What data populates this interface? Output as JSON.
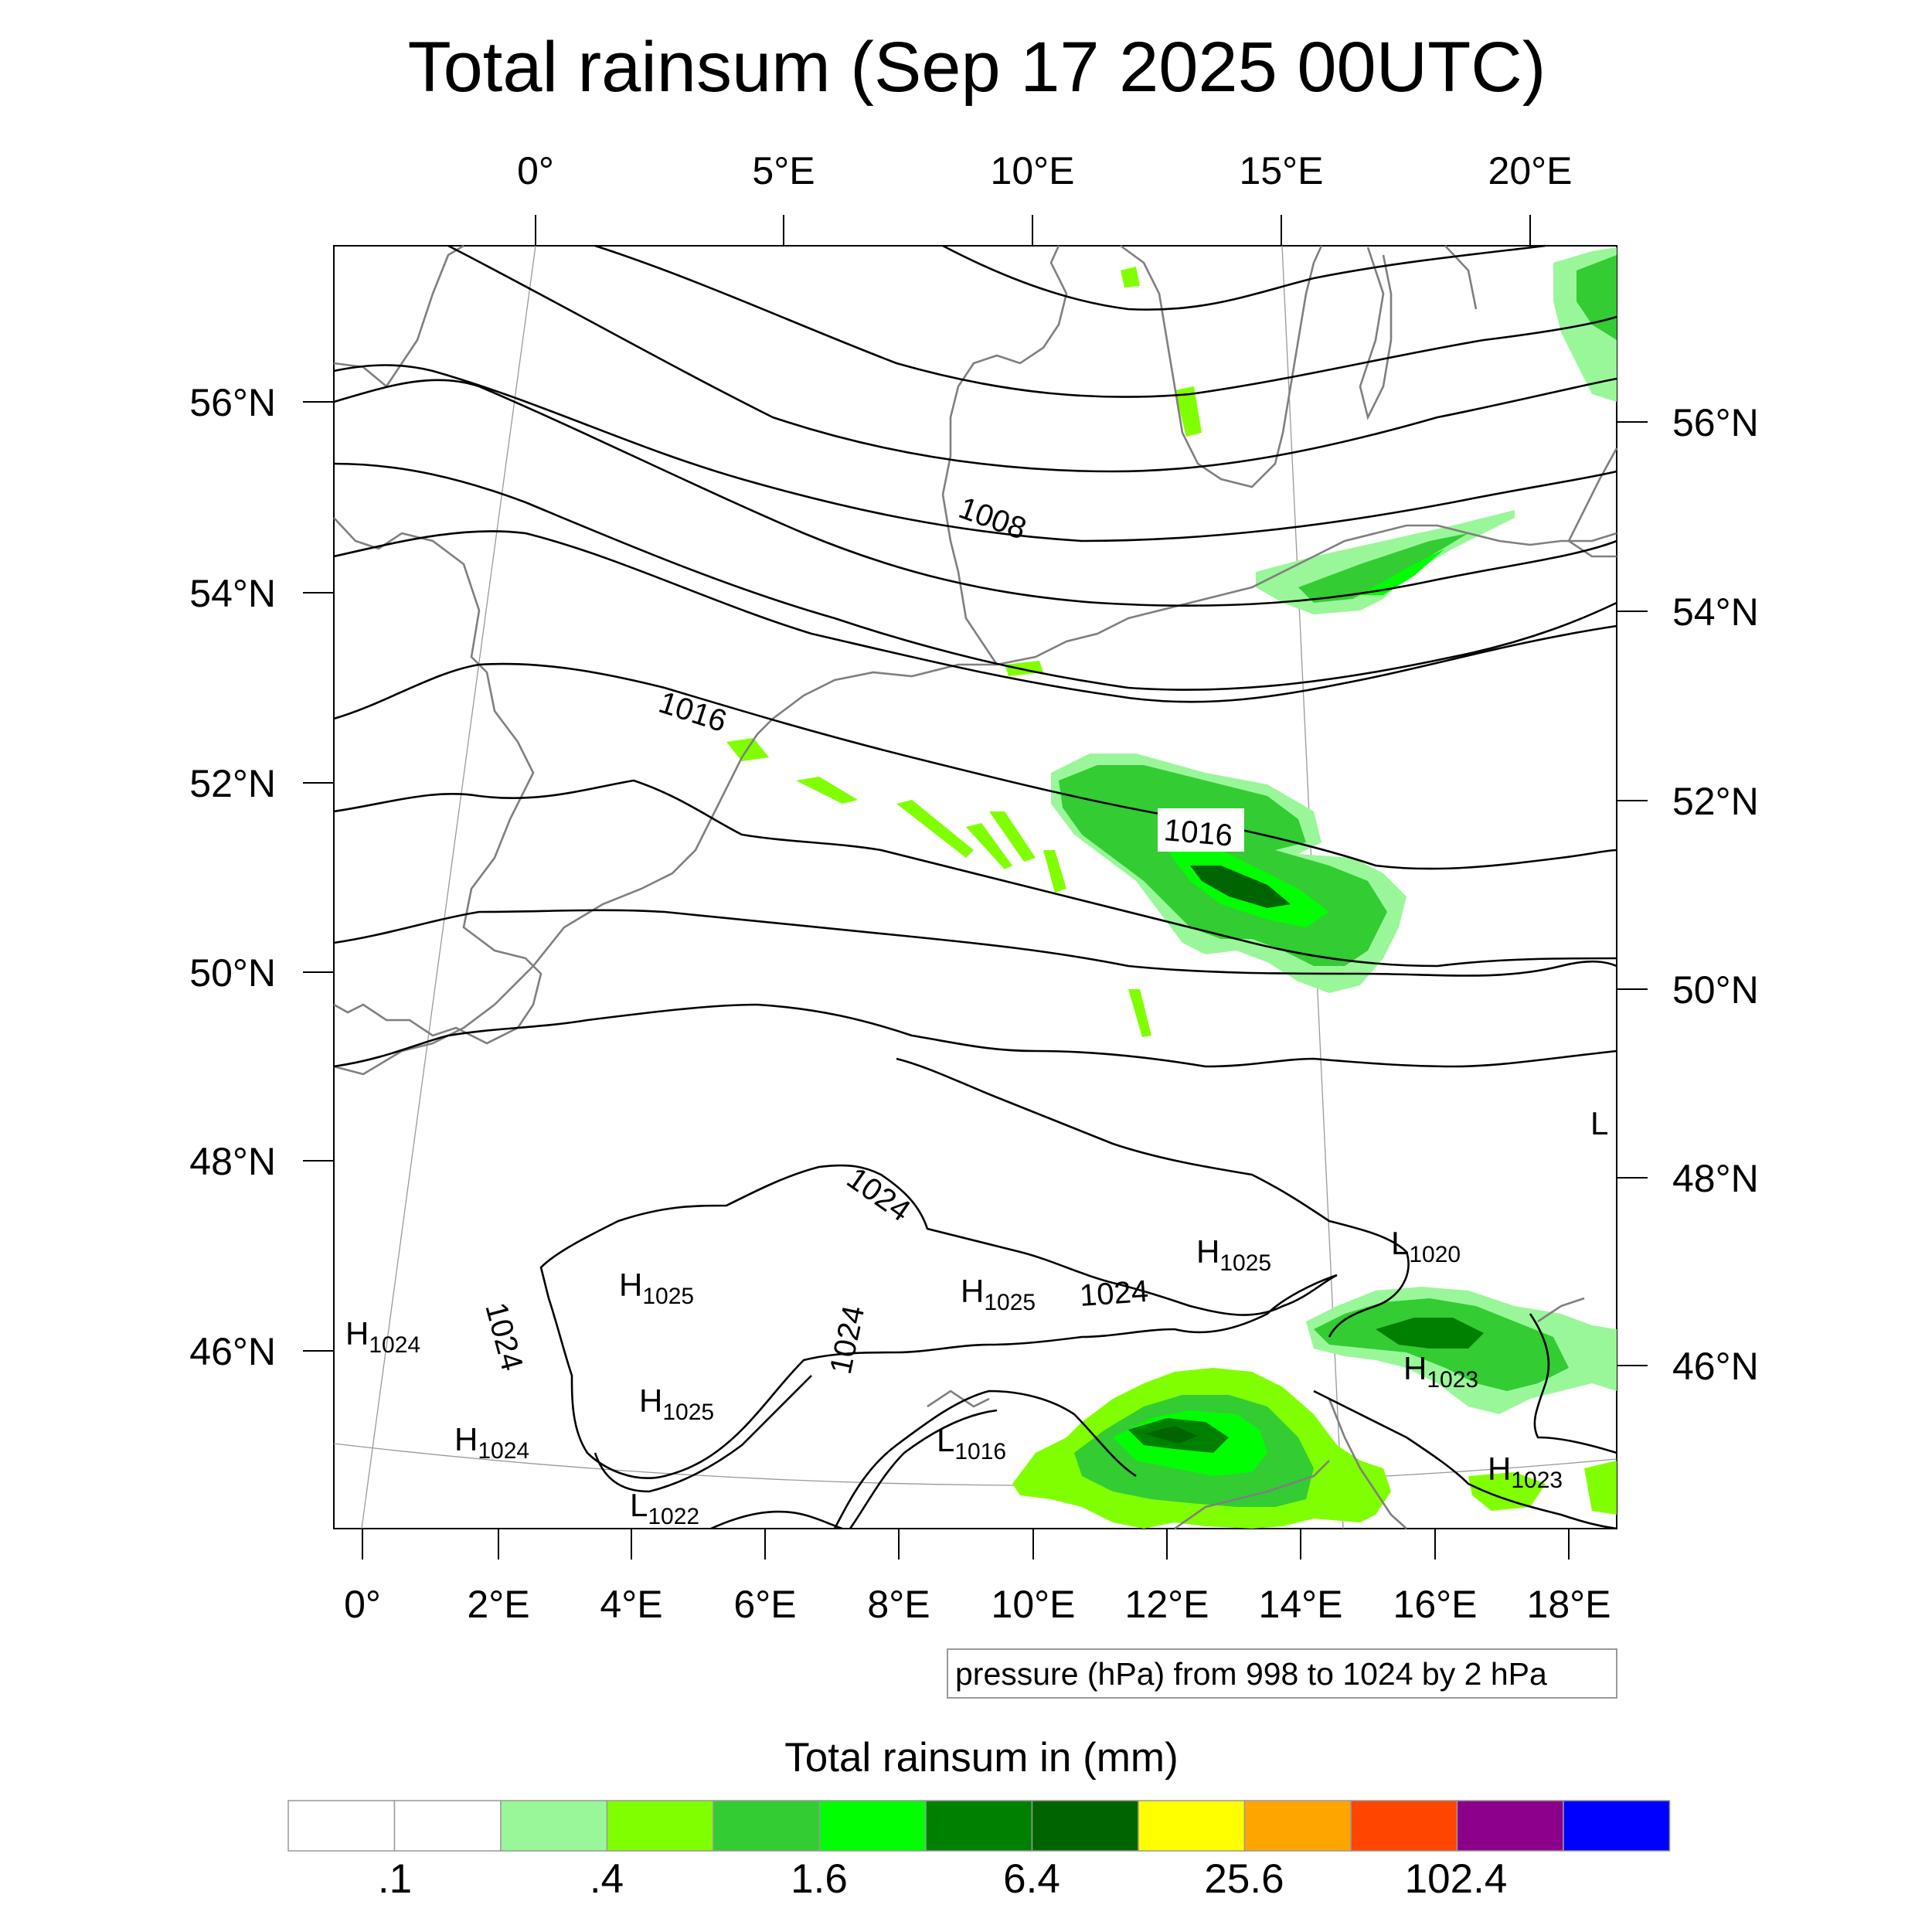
{
  "title": "Total rainsum (Sep 17 2025 00UTC)",
  "top_lon_ticks": [
    "0°",
    "5°E",
    "10°E",
    "15°E",
    "20°E"
  ],
  "bottom_lon_ticks": [
    "0°",
    "2°E",
    "4°E",
    "6°E",
    "8°E",
    "10°E",
    "12°E",
    "14°E",
    "16°E",
    "18°E"
  ],
  "left_lat_ticks": [
    "56°N",
    "54°N",
    "52°N",
    "50°N",
    "48°N",
    "46°N"
  ],
  "right_lat_ticks": [
    "56°N",
    "54°N",
    "52°N",
    "50°N",
    "48°N",
    "46°N"
  ],
  "contour_labels": [
    "1008",
    "1016",
    "1016",
    "1024",
    "1024",
    "1024",
    "1024"
  ],
  "pressure_centers": [
    {
      "type": "H",
      "value": "1024"
    },
    {
      "type": "H",
      "value": "1025"
    },
    {
      "type": "H",
      "value": "1025"
    },
    {
      "type": "H",
      "value": "1025"
    },
    {
      "type": "H",
      "value": "1025"
    },
    {
      "type": "L",
      "value": "1020"
    },
    {
      "type": "H",
      "value": "1023"
    },
    {
      "type": "H",
      "value": "1023"
    },
    {
      "type": "H",
      "value": "1024"
    },
    {
      "type": "L",
      "value": "1016"
    },
    {
      "type": "L",
      "value": "1022"
    },
    {
      "type": "L",
      "value": ""
    }
  ],
  "contour_note": "pressure (hPa) from 998 to 1024 by 2 hPa",
  "legend": {
    "title": "Total rainsum in (mm)",
    "colors": [
      "#ffffff",
      "#ffffff",
      "#99f799",
      "#80ff00",
      "#33cc33",
      "#00ff00",
      "#008000",
      "#006400",
      "#ffff00",
      "#ffa500",
      "#ff4500",
      "#8b008b",
      "#0000ff"
    ],
    "labels": [
      ".1",
      ".4",
      "1.6",
      "6.4",
      "25.6",
      "102.4"
    ]
  },
  "colors": {
    "contour": "#000000",
    "coastline": "#7f7f7f",
    "graticule": "#999999"
  }
}
